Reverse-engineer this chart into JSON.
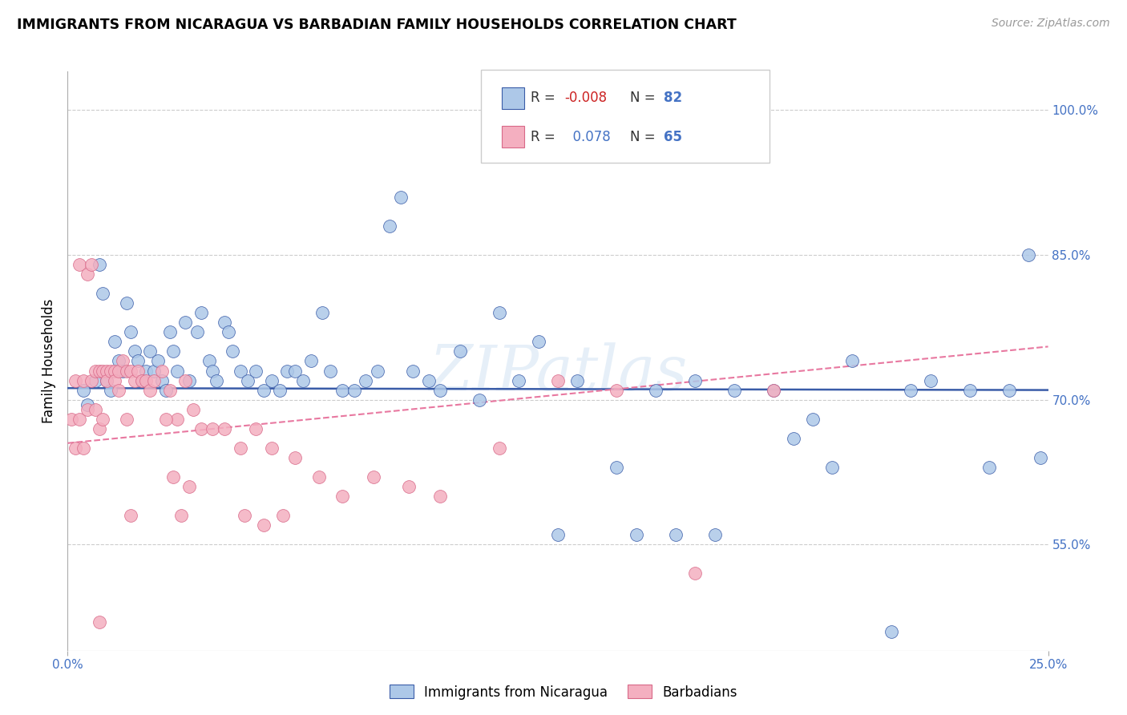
{
  "title": "IMMIGRANTS FROM NICARAGUA VS BARBADIAN FAMILY HOUSEHOLDS CORRELATION CHART",
  "source": "Source: ZipAtlas.com",
  "ylabel": "Family Households",
  "legend_label1": "Immigrants from Nicaragua",
  "legend_label2": "Barbadians",
  "R1": "-0.008",
  "N1": "82",
  "R2": "0.078",
  "N2": "65",
  "color1": "#adc8e8",
  "color2": "#f4afc0",
  "line1_color": "#3a5ca8",
  "line2_color": "#e8a0b0",
  "watermark": "ZIPatlas",
  "xlim": [
    0.0,
    0.25
  ],
  "ylim": [
    0.44,
    1.04
  ],
  "ytick_vals": [
    0.55,
    0.7,
    0.85,
    1.0
  ],
  "blue_line_y": [
    0.712,
    0.71
  ],
  "pink_line_y": [
    0.655,
    0.755
  ],
  "blue_scatter_x": [
    0.004,
    0.005,
    0.007,
    0.008,
    0.009,
    0.01,
    0.011,
    0.012,
    0.013,
    0.014,
    0.015,
    0.016,
    0.017,
    0.018,
    0.019,
    0.02,
    0.021,
    0.022,
    0.023,
    0.024,
    0.025,
    0.026,
    0.027,
    0.028,
    0.03,
    0.031,
    0.033,
    0.034,
    0.036,
    0.037,
    0.038,
    0.04,
    0.041,
    0.042,
    0.044,
    0.046,
    0.048,
    0.05,
    0.052,
    0.054,
    0.056,
    0.058,
    0.06,
    0.062,
    0.065,
    0.067,
    0.07,
    0.073,
    0.076,
    0.079,
    0.082,
    0.085,
    0.088,
    0.092,
    0.095,
    0.1,
    0.105,
    0.11,
    0.115,
    0.12,
    0.13,
    0.14,
    0.15,
    0.16,
    0.17,
    0.18,
    0.19,
    0.2,
    0.21,
    0.215,
    0.22,
    0.23,
    0.235,
    0.24,
    0.245,
    0.248,
    0.185,
    0.195,
    0.165,
    0.155,
    0.145,
    0.125
  ],
  "blue_scatter_y": [
    0.71,
    0.695,
    0.72,
    0.84,
    0.81,
    0.72,
    0.71,
    0.76,
    0.74,
    0.73,
    0.8,
    0.77,
    0.75,
    0.74,
    0.72,
    0.73,
    0.75,
    0.73,
    0.74,
    0.72,
    0.71,
    0.77,
    0.75,
    0.73,
    0.78,
    0.72,
    0.77,
    0.79,
    0.74,
    0.73,
    0.72,
    0.78,
    0.77,
    0.75,
    0.73,
    0.72,
    0.73,
    0.71,
    0.72,
    0.71,
    0.73,
    0.73,
    0.72,
    0.74,
    0.79,
    0.73,
    0.71,
    0.71,
    0.72,
    0.73,
    0.88,
    0.91,
    0.73,
    0.72,
    0.71,
    0.75,
    0.7,
    0.79,
    0.72,
    0.76,
    0.72,
    0.63,
    0.71,
    0.72,
    0.71,
    0.71,
    0.68,
    0.74,
    0.46,
    0.71,
    0.72,
    0.71,
    0.63,
    0.71,
    0.85,
    0.64,
    0.66,
    0.63,
    0.56,
    0.56,
    0.56,
    0.56
  ],
  "pink_scatter_x": [
    0.001,
    0.002,
    0.002,
    0.003,
    0.003,
    0.004,
    0.004,
    0.005,
    0.005,
    0.006,
    0.006,
    0.007,
    0.007,
    0.008,
    0.008,
    0.009,
    0.009,
    0.01,
    0.01,
    0.011,
    0.012,
    0.012,
    0.013,
    0.013,
    0.014,
    0.015,
    0.015,
    0.016,
    0.017,
    0.018,
    0.019,
    0.02,
    0.021,
    0.022,
    0.024,
    0.026,
    0.028,
    0.03,
    0.032,
    0.034,
    0.037,
    0.04,
    0.044,
    0.048,
    0.052,
    0.058,
    0.064,
    0.07,
    0.078,
    0.087,
    0.095,
    0.11,
    0.125,
    0.14,
    0.16,
    0.18,
    0.05,
    0.045,
    0.055,
    0.025,
    0.027,
    0.029,
    0.031,
    0.016,
    0.008
  ],
  "pink_scatter_y": [
    0.68,
    0.72,
    0.65,
    0.84,
    0.68,
    0.72,
    0.65,
    0.83,
    0.69,
    0.84,
    0.72,
    0.73,
    0.69,
    0.73,
    0.67,
    0.73,
    0.68,
    0.73,
    0.72,
    0.73,
    0.73,
    0.72,
    0.73,
    0.71,
    0.74,
    0.73,
    0.68,
    0.73,
    0.72,
    0.73,
    0.72,
    0.72,
    0.71,
    0.72,
    0.73,
    0.71,
    0.68,
    0.72,
    0.69,
    0.67,
    0.67,
    0.67,
    0.65,
    0.67,
    0.65,
    0.64,
    0.62,
    0.6,
    0.62,
    0.61,
    0.6,
    0.65,
    0.72,
    0.71,
    0.52,
    0.71,
    0.57,
    0.58,
    0.58,
    0.68,
    0.62,
    0.58,
    0.61,
    0.58,
    0.47
  ]
}
